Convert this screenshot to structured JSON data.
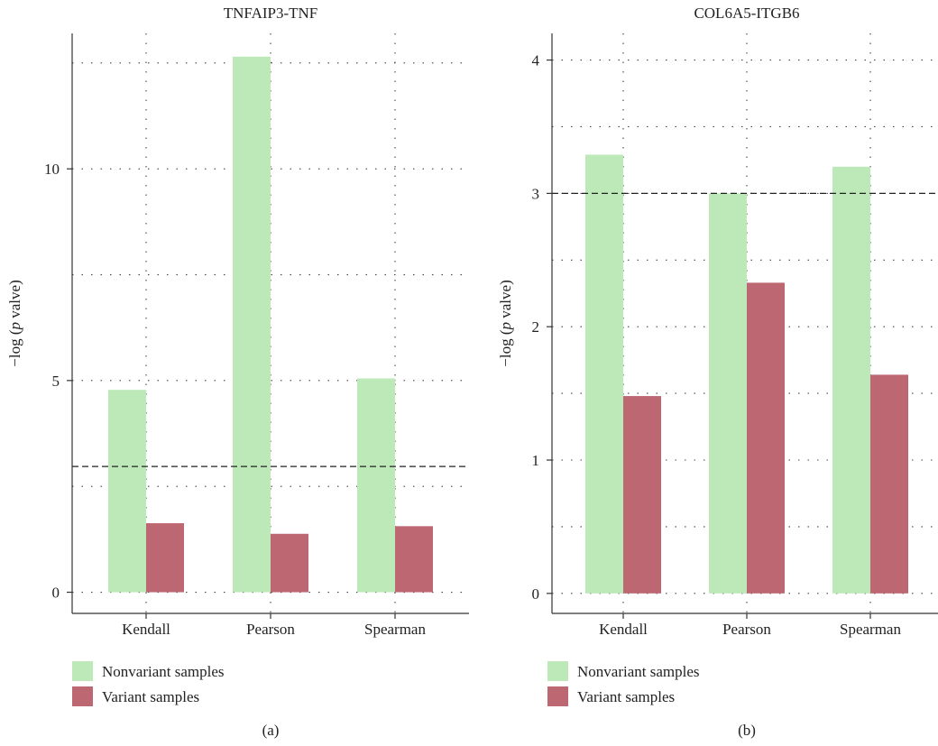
{
  "chart_data": [
    {
      "type": "bar",
      "title": "TNFAIP3-TNF",
      "ylabel": "−log (p valve)",
      "ylabel_parts": {
        "pre": "−log (",
        "italic": "p",
        "post": " valve)"
      },
      "categories": [
        "Kendall",
        "Pearson",
        "Spearman"
      ],
      "series": [
        {
          "name": "Nonvariant samples",
          "values": [
            4.78,
            12.65,
            5.05
          ]
        },
        {
          "name": "Variant samples",
          "values": [
            1.63,
            1.38,
            1.56
          ]
        }
      ],
      "yticks": [
        0,
        5,
        10
      ],
      "ylim": [
        -0.5,
        13.2
      ],
      "threshold": 2.97,
      "grid": true,
      "panel_label": "(a)"
    },
    {
      "type": "bar",
      "title": "COL6A5-ITGB6",
      "ylabel": "−log (p valve)",
      "ylabel_parts": {
        "pre": "−log (",
        "italic": "p",
        "post": " valve)"
      },
      "categories": [
        "Kendall",
        "Pearson",
        "Spearman"
      ],
      "series": [
        {
          "name": "Nonvariant samples",
          "values": [
            3.29,
            3.0,
            3.2
          ]
        },
        {
          "name": "Variant samples",
          "values": [
            1.48,
            2.33,
            1.64
          ]
        }
      ],
      "yticks": [
        0,
        1,
        2,
        3,
        4
      ],
      "ylim": [
        -0.15,
        4.2
      ],
      "threshold": 3.0,
      "grid": true,
      "panel_label": "(b)"
    }
  ],
  "colors": {
    "nonvariant": "#bde9b9",
    "variant": "#bd6772",
    "axis": "#333333",
    "grid": "#444444"
  }
}
